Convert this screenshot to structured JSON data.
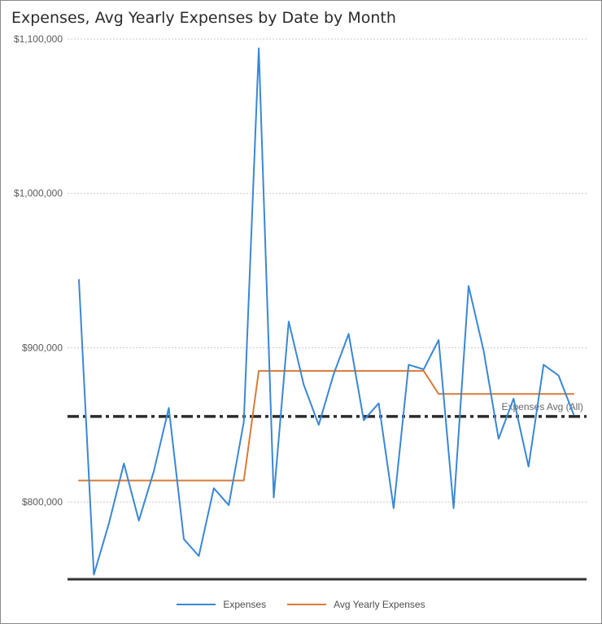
{
  "title": "Expenses, Avg Yearly Expenses by Date by Month",
  "chart_data": {
    "type": "line",
    "title": "Expenses, Avg Yearly Expenses by Date by Month",
    "xlabel": "",
    "ylabel": "",
    "ylim": [
      750000,
      1100000
    ],
    "y_ticks": [
      {
        "value": 800000,
        "label": "$800,000"
      },
      {
        "value": 900000,
        "label": "$900,000"
      },
      {
        "value": 1000000,
        "label": "$1,000,000"
      },
      {
        "value": 1100000,
        "label": "$1,100,000"
      }
    ],
    "grid": true,
    "legend_position": "bottom",
    "series": [
      {
        "name": "Expenses",
        "color": "#3a87d4",
        "values": [
          944000,
          753000,
          786000,
          825000,
          788000,
          820000,
          861000,
          776000,
          765000,
          809000,
          798000,
          852000,
          1094000,
          803000,
          917000,
          876000,
          850000,
          883000,
          909000,
          853000,
          864000,
          796000,
          889000,
          886000,
          905000,
          796000,
          940000,
          898000,
          841000,
          867000,
          823000,
          889000,
          882000,
          857000
        ]
      },
      {
        "name": "Avg Yearly Expenses",
        "color": "#d87b3a",
        "values": [
          814000,
          814000,
          814000,
          814000,
          814000,
          814000,
          814000,
          814000,
          814000,
          814000,
          814000,
          814000,
          885000,
          885000,
          885000,
          885000,
          885000,
          885000,
          885000,
          885000,
          885000,
          885000,
          885000,
          885000,
          870000,
          870000,
          870000,
          870000,
          870000,
          870000,
          870000,
          870000,
          870000,
          870000
        ]
      }
    ],
    "reference_line": {
      "label": "Expenses Avg (All)",
      "value": 855500,
      "color": "#2b2b2b",
      "style": "dash-dot"
    }
  }
}
